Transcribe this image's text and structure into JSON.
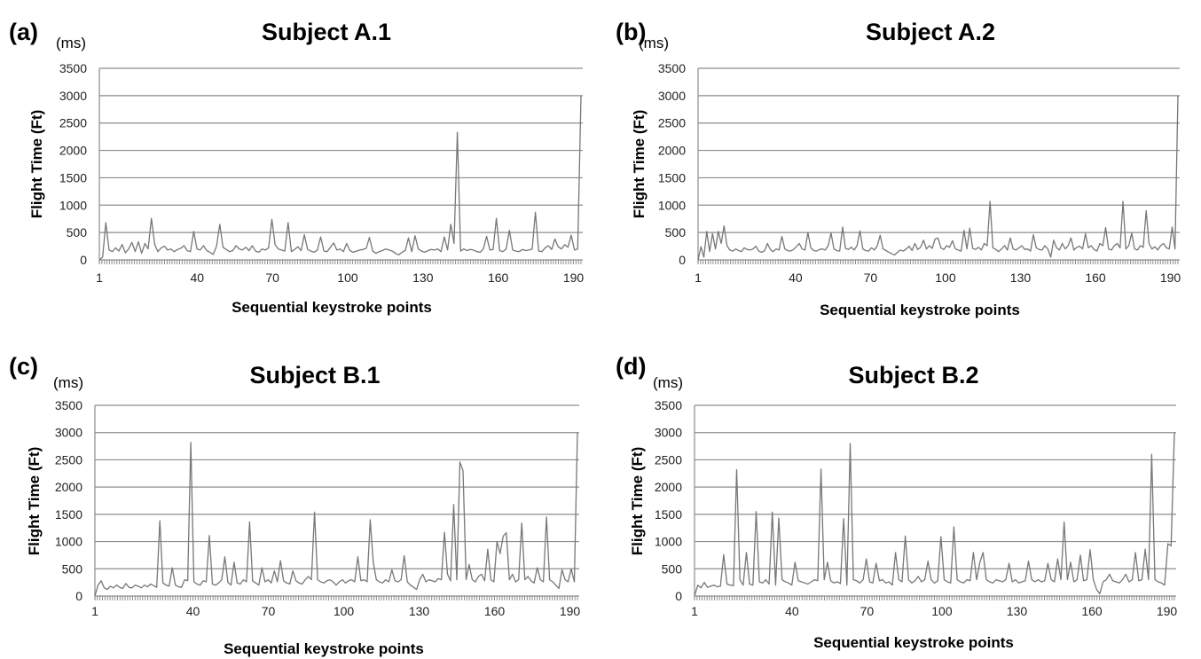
{
  "chart_data": [
    {
      "panel": "(a)",
      "type": "line",
      "title": "Subject A.1",
      "unit": "(ms)",
      "xlabel": "Sequential keystroke points",
      "ylabel": "Flight Time (Ft)",
      "ylim": [
        0,
        3500
      ],
      "yticks": [
        0,
        500,
        1000,
        1500,
        2000,
        2500,
        3000,
        3500
      ],
      "xlim": [
        1,
        193
      ],
      "xticks": [
        1,
        40,
        70,
        100,
        130,
        160,
        190
      ],
      "grid": true,
      "series": [
        {
          "peaks": [
            [
              4,
              680
            ],
            [
              15,
              280
            ],
            [
              19,
              320
            ],
            [
              22,
              330
            ],
            [
              25,
              300
            ],
            [
              28,
              760
            ],
            [
              42,
              520
            ],
            [
              48,
              180
            ],
            [
              52,
              650
            ],
            [
              60,
              260
            ],
            [
              71,
              740
            ],
            [
              78,
              680
            ],
            [
              84,
              460
            ],
            [
              92,
              420
            ],
            [
              99,
              310
            ],
            [
              105,
              300
            ],
            [
              114,
              410
            ],
            [
              124,
              400
            ],
            [
              126,
              440
            ],
            [
              137,
              420
            ],
            [
              141,
              650
            ],
            [
              145,
              2330
            ],
            [
              155,
              430
            ],
            [
              159,
              760
            ],
            [
              166,
              540
            ],
            [
              176,
              870
            ],
            [
              183,
              380
            ],
            [
              191,
              450
            ]
          ],
          "values": [
            0,
            50,
            680,
            180,
            150,
            220,
            160,
            280,
            130,
            200,
            320,
            150,
            330,
            120,
            300,
            200,
            760,
            280,
            150,
            220,
            250,
            180,
            200,
            150,
            190,
            210,
            260,
            170,
            150,
            520,
            200,
            180,
            260,
            170,
            140,
            100,
            250,
            650,
            230,
            190,
            150,
            170,
            260,
            200,
            180,
            230,
            170,
            260,
            160,
            140,
            200,
            180,
            220,
            740,
            280,
            200,
            180,
            160,
            680,
            150,
            190,
            240,
            170,
            460,
            190,
            160,
            140,
            180,
            420,
            160,
            150,
            230,
            310,
            180,
            200,
            150,
            300,
            170,
            140,
            160,
            180,
            190,
            210,
            410,
            160,
            120,
            150,
            170,
            200,
            180,
            160,
            120,
            90,
            140,
            170,
            400,
            150,
            440,
            200,
            160,
            140,
            170,
            190,
            180,
            200,
            150,
            420,
            180,
            650,
            300,
            2330,
            160,
            200,
            170,
            190,
            180,
            150,
            140,
            200,
            430,
            180,
            190,
            760,
            170,
            150,
            200,
            540,
            180,
            160,
            150,
            190,
            170,
            180,
            200,
            870,
            160,
            150,
            220,
            260,
            190,
            380,
            240,
            200,
            280,
            230,
            450,
            180,
            200,
            3000
          ]
        }
      ]
    },
    {
      "panel": "(b)",
      "type": "line",
      "title": "Subject A.2",
      "unit": "(ms)",
      "xlabel": "Sequential keystroke points",
      "ylabel": "Flight Time (Ft)",
      "ylim": [
        0,
        3500
      ],
      "yticks": [
        0,
        500,
        1000,
        1500,
        2000,
        2500,
        3000,
        3500
      ],
      "xlim": [
        1,
        193
      ],
      "xticks": [
        1,
        40,
        70,
        100,
        130,
        160,
        190
      ],
      "grid": true,
      "series": [
        {
          "values": [
            0,
            240,
            50,
            520,
            150,
            480,
            200,
            520,
            300,
            620,
            260,
            180,
            160,
            200,
            170,
            150,
            220,
            190,
            180,
            200,
            250,
            160,
            140,
            170,
            300,
            190,
            150,
            200,
            180,
            430,
            200,
            170,
            160,
            190,
            240,
            300,
            200,
            180,
            500,
            220,
            170,
            160,
            190,
            200,
            180,
            260,
            490,
            200,
            170,
            160,
            600,
            210,
            190,
            230,
            180,
            260,
            530,
            200,
            170,
            160,
            220,
            180,
            260,
            450,
            200,
            170,
            140,
            110,
            90,
            140,
            180,
            160,
            200,
            250,
            170,
            300,
            190,
            230,
            360,
            200,
            260,
            210,
            380,
            400,
            220,
            190,
            260,
            230,
            350,
            200,
            180,
            160,
            540,
            200,
            580,
            210,
            190,
            230,
            180,
            300,
            260,
            1070,
            220,
            190,
            150,
            200,
            260,
            180,
            400,
            200,
            180,
            220,
            260,
            190,
            200,
            160,
            460,
            220,
            190,
            180,
            260,
            200,
            50,
            360,
            220,
            180,
            300,
            200,
            260,
            400,
            180,
            230,
            250,
            200,
            480,
            220,
            260,
            190,
            160,
            300,
            260,
            590,
            200,
            180,
            260,
            300,
            220,
            1070,
            200,
            260,
            490,
            200,
            180,
            260,
            230,
            900,
            300,
            200,
            240,
            180,
            260,
            300,
            220,
            200,
            600,
            200,
            3000
          ]
        }
      ]
    },
    {
      "panel": "(c)",
      "type": "line",
      "title": "Subject B.1",
      "unit": "(ms)",
      "xlabel": "Sequential keystroke points",
      "ylabel": "Flight Time (Ft)",
      "ylim": [
        0,
        3500
      ],
      "yticks": [
        0,
        500,
        1000,
        1500,
        2000,
        2500,
        3000,
        3500
      ],
      "xlim": [
        1,
        193
      ],
      "xticks": [
        1,
        40,
        70,
        100,
        130,
        160,
        190
      ],
      "grid": true,
      "series": [
        {
          "values": [
            0,
            200,
            280,
            150,
            120,
            180,
            150,
            200,
            160,
            140,
            230,
            160,
            150,
            200,
            180,
            150,
            200,
            170,
            220,
            190,
            160,
            1380,
            240,
            200,
            180,
            520,
            200,
            170,
            160,
            300,
            280,
            2820,
            260,
            220,
            200,
            280,
            260,
            1110,
            220,
            200,
            240,
            300,
            720,
            250,
            200,
            620,
            240,
            220,
            300,
            260,
            1360,
            280,
            240,
            200,
            520,
            260,
            300,
            240,
            460,
            260,
            650,
            280,
            240,
            220,
            460,
            280,
            240,
            220,
            300,
            360,
            300,
            1540,
            300,
            260,
            240,
            280,
            300,
            260,
            200,
            260,
            300,
            240,
            280,
            300,
            260,
            720,
            280,
            300,
            260,
            1400,
            620,
            300,
            260,
            240,
            300,
            260,
            480,
            280,
            260,
            300,
            740,
            260,
            200,
            160,
            120,
            300,
            400,
            260,
            300,
            280,
            260,
            320,
            300,
            1170,
            400,
            280,
            1680,
            300,
            2460,
            2300,
            300,
            580,
            300,
            260,
            360,
            400,
            280,
            860,
            300,
            260,
            1000,
            780,
            1100,
            1160,
            300,
            400,
            260,
            300,
            1340,
            300,
            360,
            280,
            240,
            520,
            300,
            260,
            1450,
            300,
            260,
            200,
            140,
            480,
            300,
            260,
            500,
            260,
            3000
          ]
        }
      ]
    },
    {
      "panel": "(d)",
      "type": "line",
      "title": "Subject B.2",
      "unit": "(ms)",
      "xlabel": "Sequential keystroke points",
      "ylabel": "Flight Time (Ft)",
      "ylim": [
        0,
        3500
      ],
      "yticks": [
        0,
        500,
        1000,
        1500,
        2000,
        2500,
        3000,
        3500
      ],
      "xlim": [
        1,
        193
      ],
      "xticks": [
        1,
        40,
        70,
        100,
        130,
        160,
        190
      ],
      "grid": true,
      "series": [
        {
          "values": [
            0,
            200,
            150,
            250,
            160,
            180,
            200,
            170,
            180,
            760,
            220,
            200,
            190,
            2320,
            300,
            200,
            800,
            220,
            200,
            1550,
            260,
            240,
            300,
            220,
            1540,
            200,
            1430,
            300,
            260,
            240,
            200,
            620,
            280,
            260,
            240,
            220,
            260,
            300,
            280,
            2330,
            300,
            620,
            280,
            240,
            260,
            230,
            1420,
            200,
            2800,
            300,
            280,
            240,
            300,
            680,
            260,
            240,
            600,
            280,
            300,
            240,
            260,
            200,
            800,
            300,
            260,
            1100,
            300,
            240,
            280,
            360,
            260,
            300,
            640,
            300,
            240,
            280,
            1090,
            300,
            260,
            240,
            1270,
            300,
            260,
            240,
            300,
            280,
            800,
            300,
            620,
            800,
            300,
            260,
            240,
            300,
            280,
            260,
            300,
            600,
            260,
            300,
            240,
            260,
            280,
            640,
            300,
            260,
            300,
            260,
            280,
            600,
            300,
            260,
            680,
            300,
            1360,
            300,
            620,
            260,
            300,
            750,
            280,
            300,
            850,
            300,
            120,
            40,
            260,
            300,
            400,
            280,
            260,
            240,
            300,
            400,
            260,
            300,
            800,
            280,
            300,
            860,
            300,
            2600,
            300,
            260,
            240,
            200,
            960,
            920,
            3000
          ]
        }
      ]
    }
  ]
}
